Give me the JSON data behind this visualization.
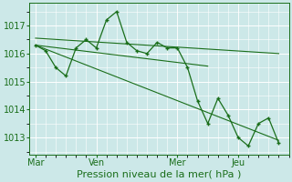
{
  "background_color": "#cce8e8",
  "grid_color": "#ffffff",
  "line_color": "#1a6e1a",
  "xlabel": "Pression niveau de la mer( hPa )",
  "xlabel_fontsize": 8,
  "tick_fontsize": 7,
  "yticks": [
    1013,
    1014,
    1015,
    1016,
    1017
  ],
  "xtick_labels": [
    "Mar",
    "Ven",
    "Mer",
    "Jeu"
  ],
  "xtick_positions": [
    0,
    3,
    7,
    10
  ],
  "xlim": [
    -0.3,
    12.5
  ],
  "ylim": [
    1012.4,
    1017.8
  ],
  "series1_x": [
    0,
    0.5,
    1,
    1.5,
    2,
    2.5,
    3,
    3.5,
    4,
    4.5,
    5,
    5.5,
    6,
    6.5,
    7,
    7.5,
    8,
    8.5,
    9,
    9.5,
    10,
    10.5,
    11,
    11.5,
    12
  ],
  "series1_y": [
    1016.3,
    1016.1,
    1015.5,
    1015.2,
    1016.2,
    1016.5,
    1016.2,
    1017.2,
    1017.5,
    1016.4,
    1016.1,
    1016.0,
    1016.4,
    1016.2,
    1016.2,
    1015.5,
    1014.3,
    1013.5,
    1014.4,
    1013.8,
    1013.0,
    1012.7,
    1013.5,
    1013.7,
    1012.8
  ],
  "trend1_x": [
    0,
    12
  ],
  "trend1_y": [
    1016.55,
    1016.0
  ],
  "trend2_x": [
    0,
    8.5
  ],
  "trend2_y": [
    1016.3,
    1015.55
  ],
  "trend3_x": [
    0,
    12
  ],
  "trend3_y": [
    1016.3,
    1012.9
  ],
  "vlines_x": [
    0,
    3,
    7,
    10
  ],
  "vline_color": "#888888"
}
